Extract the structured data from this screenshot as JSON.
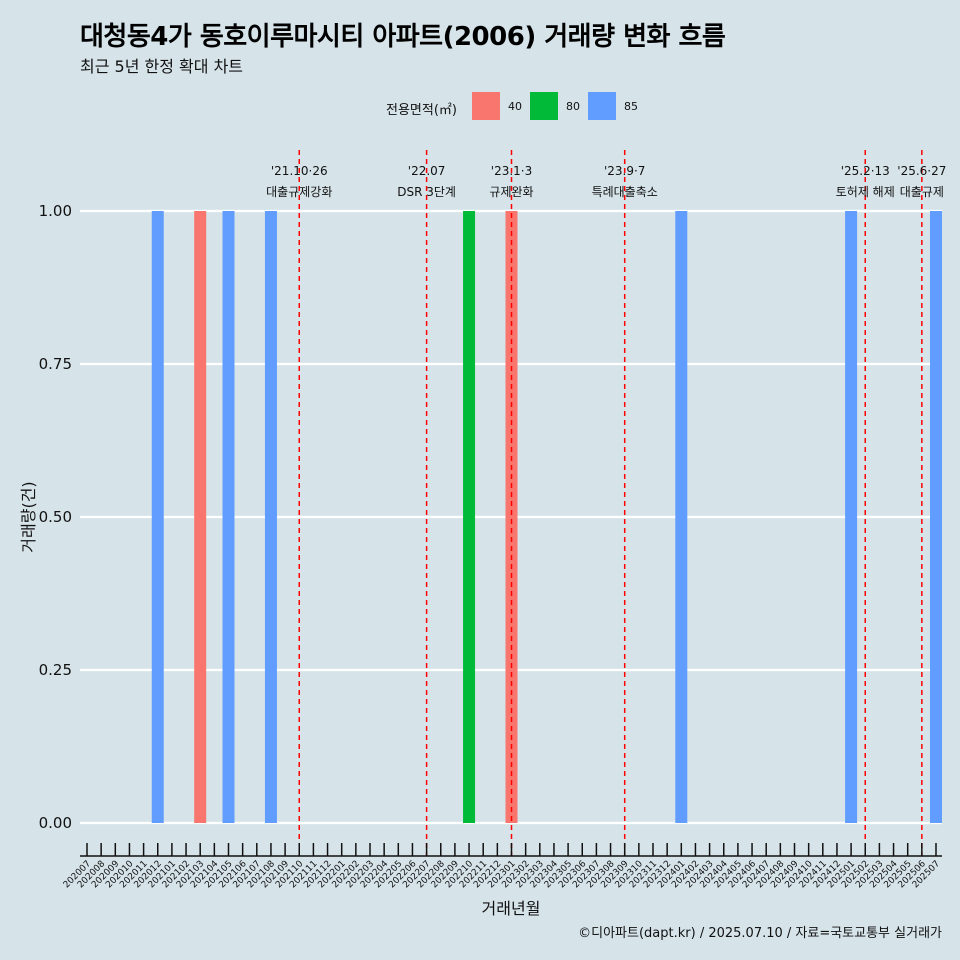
{
  "header": {
    "title": "대청동4가 동호이루마시티 아파트(2006) 거래량 변화 흐름",
    "subtitle": "최근 5년 한정 확대 차트"
  },
  "legend": {
    "title": "전용면적(㎡)",
    "items": [
      {
        "label": "40",
        "color": "#F8766D"
      },
      {
        "label": "80",
        "color": "#00BA38"
      },
      {
        "label": "85",
        "color": "#619CFF"
      }
    ]
  },
  "caption": "©디아파트(dapt.kr) / 2025.07.10 / 자료=국토교통부 실거래가",
  "chart_data": {
    "type": "bar",
    "xlabel": "거래년월",
    "ylabel": "거래량(건)",
    "ylim": [
      0,
      1
    ],
    "yticks": [
      "0.00",
      "0.25",
      "0.50",
      "0.75",
      "1.00"
    ],
    "grid": true,
    "legend_position": "top",
    "categories": [
      "202007",
      "202008",
      "202009",
      "202010",
      "202011",
      "202012",
      "202101",
      "202102",
      "202103",
      "202104",
      "202105",
      "202106",
      "202107",
      "202108",
      "202109",
      "202110",
      "202111",
      "202112",
      "202201",
      "202202",
      "202203",
      "202204",
      "202205",
      "202206",
      "202207",
      "202208",
      "202209",
      "202210",
      "202211",
      "202212",
      "202301",
      "202302",
      "202303",
      "202304",
      "202305",
      "202306",
      "202307",
      "202308",
      "202309",
      "202310",
      "202311",
      "202312",
      "202401",
      "202402",
      "202403",
      "202404",
      "202405",
      "202406",
      "202407",
      "202408",
      "202409",
      "202410",
      "202411",
      "202412",
      "202501",
      "202502",
      "202503",
      "202504",
      "202505",
      "202506",
      "202507"
    ],
    "series": [
      {
        "name": "40",
        "color": "#F8766D",
        "points": [
          {
            "x": "202103",
            "y": 1
          },
          {
            "x": "202301",
            "y": 1
          }
        ]
      },
      {
        "name": "80",
        "color": "#00BA38",
        "points": [
          {
            "x": "202210",
            "y": 1
          }
        ]
      },
      {
        "name": "85",
        "color": "#619CFF",
        "points": [
          {
            "x": "202012",
            "y": 1
          },
          {
            "x": "202105",
            "y": 1
          },
          {
            "x": "202108",
            "y": 1
          },
          {
            "x": "202401",
            "y": 1
          },
          {
            "x": "202501",
            "y": 1
          },
          {
            "x": "202507",
            "y": 1
          }
        ]
      }
    ],
    "annotations": [
      {
        "date": "202110",
        "line1": "'21.10·26",
        "line2": "대출규제강화"
      },
      {
        "date": "202207",
        "line1": "'22.07",
        "line2": "DSR 3단계"
      },
      {
        "date": "202301",
        "line1": "'23.1·3",
        "line2": "규제완화"
      },
      {
        "date": "202309",
        "line1": "'23.9·7",
        "line2": "특례대출축소"
      },
      {
        "date": "202502",
        "line1": "'25.2·13",
        "line2": "토허제 해제"
      },
      {
        "date": "202506",
        "line1": "'25.6·27",
        "line2": "대출규제"
      }
    ]
  }
}
